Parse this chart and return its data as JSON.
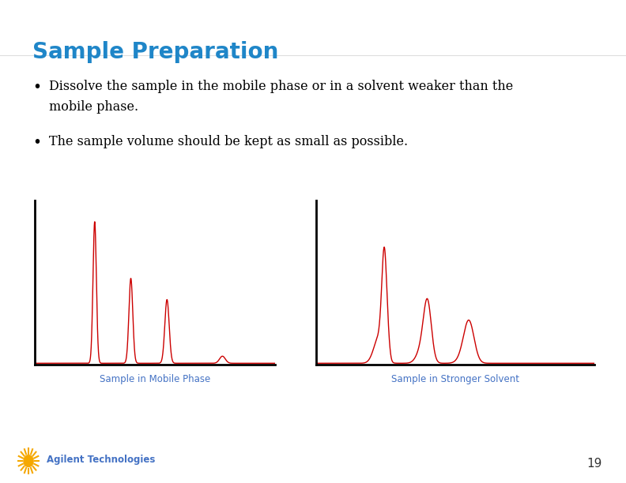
{
  "title": "Sample Preparation",
  "title_color": "#1F86C8",
  "title_fontsize": 20,
  "bullet1_line1": "Dissolve the sample in the mobile phase or in a solvent weaker than the",
  "bullet1_line2": "mobile phase.",
  "bullet2": "The sample volume should be kept as small as possible.",
  "bullet_fontsize": 11.5,
  "bullet_color": "#000000",
  "label1": "Sample in Mobile Phase",
  "label2": "Sample in Stronger Solvent",
  "label_fontsize": 8.5,
  "label_color": "#4472C4",
  "peak_color": "#CC0000",
  "axis_color": "#000000",
  "bg_color": "#FFFFFF",
  "page_number": "19",
  "footer_text": "Agilent Technologies",
  "logo_color": "#F5A800"
}
